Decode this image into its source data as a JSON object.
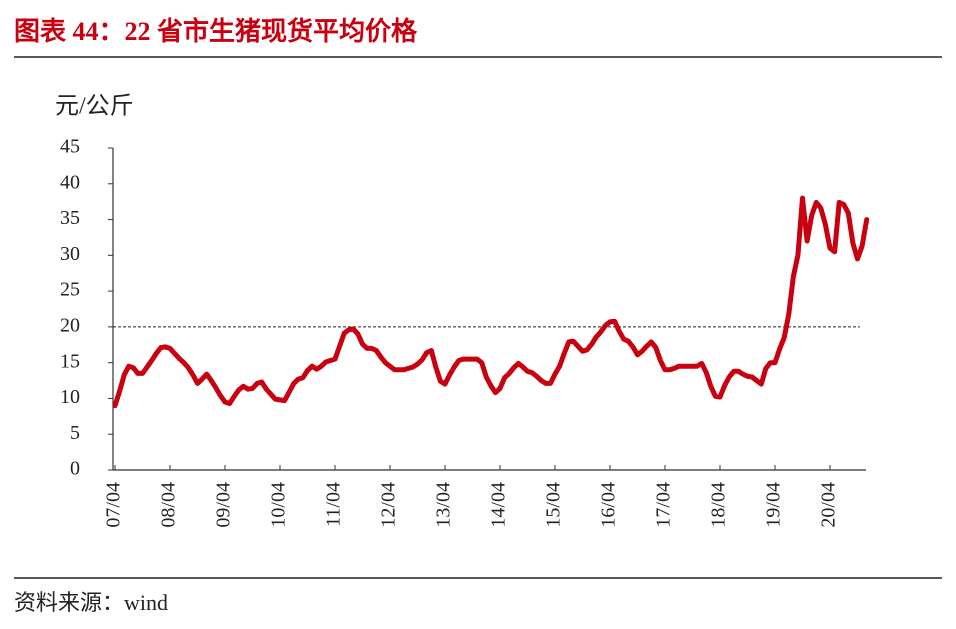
{
  "chart_data": {
    "type": "line",
    "title": "图表 44：22 省市生猪现货平均价格",
    "y_label": "元/公斤",
    "source": "资料来源：wind",
    "color": "#c8000f",
    "reference_line": 20,
    "ylim": [
      0,
      45
    ],
    "yticks": [
      0,
      5,
      10,
      15,
      20,
      25,
      30,
      35,
      40,
      45
    ],
    "categories": [
      "07/04",
      null,
      null,
      null,
      null,
      null,
      null,
      null,
      null,
      null,
      null,
      null,
      "08/04",
      null,
      null,
      null,
      null,
      null,
      null,
      null,
      null,
      null,
      null,
      null,
      "09/04",
      null,
      null,
      null,
      null,
      null,
      null,
      null,
      null,
      null,
      null,
      null,
      "10/04",
      null,
      null,
      null,
      null,
      null,
      null,
      null,
      null,
      null,
      null,
      null,
      "11/04",
      null,
      null,
      null,
      null,
      null,
      null,
      null,
      null,
      null,
      null,
      null,
      "12/04",
      null,
      null,
      null,
      null,
      null,
      null,
      null,
      null,
      null,
      null,
      null,
      "13/04",
      null,
      null,
      null,
      null,
      null,
      null,
      null,
      null,
      null,
      null,
      null,
      "14/04",
      null,
      null,
      null,
      null,
      null,
      null,
      null,
      null,
      null,
      null,
      null,
      "15/04",
      null,
      null,
      null,
      null,
      null,
      null,
      null,
      null,
      null,
      null,
      null,
      "16/04",
      null,
      null,
      null,
      null,
      null,
      null,
      null,
      null,
      null,
      null,
      null,
      "17/04",
      null,
      null,
      null,
      null,
      null,
      null,
      null,
      null,
      null,
      null,
      null,
      "18/04",
      null,
      null,
      null,
      null,
      null,
      null,
      null,
      null,
      null,
      null,
      null,
      "19/04",
      null,
      null,
      null,
      null,
      null,
      null,
      null,
      null,
      null,
      null,
      null,
      "20/04",
      null,
      null,
      null,
      null,
      null,
      null,
      null,
      null
    ],
    "values": [
      9,
      11,
      13.3,
      14.5,
      14.3,
      13.5,
      13.5,
      14.4,
      15.3,
      16.3,
      17.1,
      17.2,
      17,
      16.3,
      15.6,
      15,
      14.3,
      13.3,
      12.1,
      12.7,
      13.4,
      12.5,
      11.5,
      10.4,
      9.5,
      9.3,
      10.3,
      11.2,
      11.7,
      11.3,
      11.4,
      12.1,
      12.3,
      11.3,
      10.6,
      9.9,
      9.8,
      9.7,
      10.9,
      12.1,
      12.7,
      12.9,
      13.9,
      14.5,
      14.1,
      14.5,
      15.1,
      15.3,
      15.5,
      17.3,
      19.1,
      19.6,
      19.7,
      19,
      17.6,
      17,
      17,
      16.7,
      15.8,
      15,
      14.5,
      14,
      14,
      14,
      14.2,
      14.4,
      14.8,
      15.4,
      16.4,
      16.7,
      14.4,
      12.4,
      12,
      13.3,
      14.4,
      15.3,
      15.5,
      15.5,
      15.5,
      15.5,
      15,
      13,
      11.8,
      10.8,
      11.4,
      12.9,
      13.5,
      14.3,
      14.9,
      14.4,
      13.8,
      13.6,
      13.1,
      12.5,
      12.1,
      12.1,
      13.4,
      14.5,
      16.3,
      17.9,
      18,
      17.3,
      16.6,
      16.8,
      17.6,
      18.6,
      19.3,
      20.2,
      20.7,
      20.8,
      19.4,
      18.3,
      18,
      17.2,
      16.1,
      16.6,
      17.3,
      17.9,
      17.1,
      15.3,
      14,
      14,
      14.2,
      14.5,
      14.5,
      14.5,
      14.5,
      14.5,
      14.9,
      13.6,
      11.7,
      10.3,
      10.2,
      11.8,
      13,
      13.8,
      13.8,
      13.4,
      13.1,
      13,
      12.5,
      12,
      14.2,
      15,
      15,
      16.9,
      18.5,
      21.8,
      27,
      30,
      38,
      32,
      35.6,
      37.4,
      36.6,
      34.3,
      31,
      30.5,
      37.4,
      37.1,
      35.9,
      31.7,
      29.5,
      31.3,
      35
    ]
  }
}
